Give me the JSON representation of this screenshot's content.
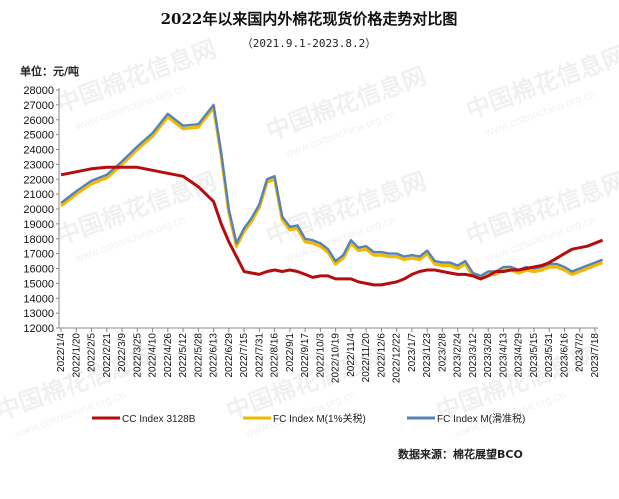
{
  "chart_data": {
    "type": "line",
    "title": "2022年以来国内外棉花现货价格走势对比图",
    "subtitle": "（2021.9.1-2023.8.2）",
    "unit_label": "单位：元/吨",
    "source_label": "数据来源：棉花展望BCO",
    "y_ticks": [
      "12000",
      "13000",
      "14000",
      "15000",
      "16000",
      "17000",
      "18000",
      "19000",
      "20000",
      "21000",
      "22000",
      "23000",
      "24000",
      "25000",
      "26000",
      "27000",
      "28000"
    ],
    "ylim": [
      12000,
      28000
    ],
    "grid": false,
    "legend_position": "bottom",
    "x_tick_labels": [
      "2022/1/4",
      "2022/1/20",
      "2022/2/5",
      "2022/2/21",
      "2022/3/9",
      "2022/3/25",
      "2022/4/10",
      "2022/4/26",
      "2022/5/12",
      "2022/5/28",
      "2022/6/13",
      "2022/6/29",
      "2022/7/15",
      "2022/7/31",
      "2022/8/16",
      "2022/9/1",
      "2022/9/17",
      "2022/10/3",
      "2022/10/19",
      "2022/11/4",
      "2022/11/20",
      "2022/12/6",
      "2022/12/22",
      "2023/1/7",
      "2023/1/23",
      "2023/2/8",
      "2023/2/24",
      "2023/3/12",
      "2023/3/28",
      "2023/4/13",
      "2023/4/29",
      "2023/5/15",
      "2023/5/31",
      "2023/6/16",
      "2023/7/2",
      "2023/7/18"
    ],
    "x": [
      "2022/1/4",
      "2022/1/20",
      "2022/2/5",
      "2022/2/21",
      "2022/3/9",
      "2022/3/25",
      "2022/4/10",
      "2022/4/26",
      "2022/5/12",
      "2022/5/28",
      "2022/6/13",
      "2022/6/21",
      "2022/6/29",
      "2022/7/7",
      "2022/7/15",
      "2022/7/23",
      "2022/7/31",
      "2022/8/8",
      "2022/8/16",
      "2022/8/24",
      "2022/9/1",
      "2022/9/9",
      "2022/9/17",
      "2022/9/25",
      "2022/10/3",
      "2022/10/11",
      "2022/10/19",
      "2022/10/27",
      "2022/11/4",
      "2022/11/12",
      "2022/11/20",
      "2022/11/28",
      "2022/12/6",
      "2022/12/14",
      "2022/12/22",
      "2022/12/30",
      "2023/1/7",
      "2023/1/15",
      "2023/1/23",
      "2023/1/31",
      "2023/2/8",
      "2023/2/16",
      "2023/2/24",
      "2023/3/4",
      "2023/3/12",
      "2023/3/20",
      "2023/3/28",
      "2023/4/5",
      "2023/4/13",
      "2023/4/21",
      "2023/4/29",
      "2023/5/7",
      "2023/5/15",
      "2023/5/23",
      "2023/5/31",
      "2023/6/8",
      "2023/6/16",
      "2023/6/24",
      "2023/7/2",
      "2023/7/10",
      "2023/7/18",
      "2023/7/26"
    ],
    "series": [
      {
        "name": "CC Index 3128B",
        "color": "#b50d0d",
        "values": [
          22300,
          22500,
          22700,
          22800,
          22800,
          22800,
          22600,
          22400,
          22200,
          21500,
          20500,
          19000,
          17800,
          16800,
          15800,
          15700,
          15600,
          15800,
          15900,
          15800,
          15900,
          15800,
          15600,
          15400,
          15500,
          15500,
          15300,
          15300,
          15300,
          15100,
          15000,
          14900,
          14900,
          15000,
          15100,
          15300,
          15600,
          15800,
          15900,
          15900,
          15800,
          15700,
          15600,
          15600,
          15500,
          15300,
          15500,
          15800,
          15800,
          15900,
          15900,
          16000,
          16100,
          16200,
          16400,
          16700,
          17000,
          17300,
          17400,
          17500,
          17700,
          17900
        ]
      },
      {
        "name": "FC Index M(1%关税)",
        "color": "#f5b800",
        "values": [
          20200,
          21000,
          21700,
          22100,
          23000,
          24000,
          24900,
          26200,
          25400,
          25500,
          26800,
          23600,
          19800,
          17500,
          18500,
          19200,
          20100,
          21800,
          22000,
          19300,
          18600,
          18700,
          17800,
          17700,
          17500,
          17100,
          16300,
          16700,
          17700,
          17200,
          17300,
          16900,
          16900,
          16800,
          16800,
          16600,
          16700,
          16600,
          17000,
          16300,
          16200,
          16200,
          16000,
          16300,
          15500,
          15300,
          15600,
          15600,
          15900,
          15900,
          15700,
          15900,
          15800,
          15900,
          16100,
          16100,
          15900,
          15600,
          15800,
          16000,
          16200,
          16400
        ]
      },
      {
        "name": "FC Index M(滑准税)",
        "color": "#5483b7",
        "values": [
          20400,
          21200,
          21900,
          22300,
          23200,
          24200,
          25100,
          26400,
          25600,
          25700,
          27000,
          23800,
          20000,
          17700,
          18700,
          19400,
          20300,
          22000,
          22200,
          19500,
          18800,
          18900,
          18000,
          17900,
          17700,
          17300,
          16500,
          16900,
          17900,
          17400,
          17500,
          17100,
          17100,
          17000,
          17000,
          16800,
          16900,
          16800,
          17200,
          16500,
          16400,
          16400,
          16200,
          16500,
          15700,
          15500,
          15800,
          15800,
          16100,
          16100,
          15900,
          16100,
          16000,
          16100,
          16300,
          16300,
          16100,
          15800,
          16000,
          16200,
          16400,
          16600
        ]
      }
    ]
  },
  "watermark": {
    "main": "中国棉花信息网",
    "url": "www.cottonchina.org.cn"
  }
}
